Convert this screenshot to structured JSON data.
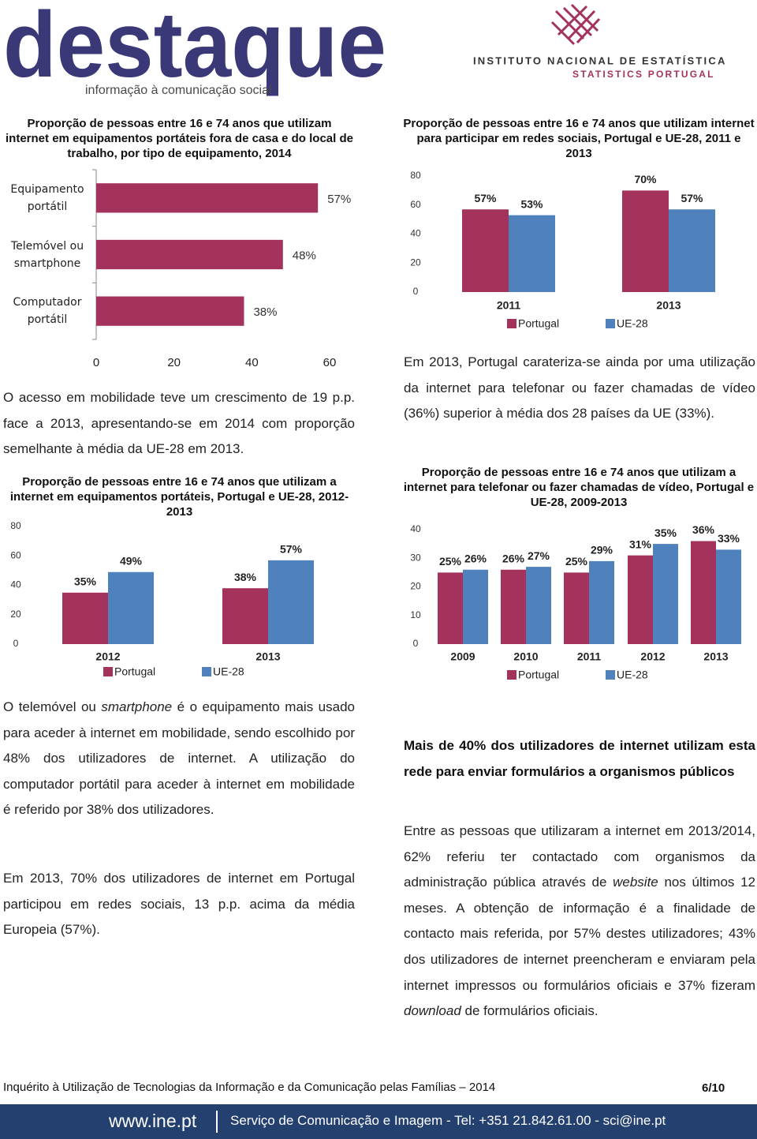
{
  "header": {
    "logo": "destaque",
    "tagline": "informação à comunicação social",
    "institute": "INSTITUTO NACIONAL DE ESTATÍSTICA",
    "institute_en": "STATISTICS PORTUGAL"
  },
  "chart_data": [
    {
      "type": "barh",
      "title": "Proporção de pessoas entre 16 e 74 anos que utilizam internet em equipamentos portáteis fora de casa e do local de trabalho, por tipo de equipamento, 2014",
      "categories": [
        "Equipamento portátil",
        "Telemóvel ou smartphone",
        "Computador portátil"
      ],
      "values": [
        57,
        48,
        38
      ],
      "value_labels": [
        "57%",
        "48%",
        "38%"
      ],
      "color": "#A3335C",
      "xlim": [
        0,
        60
      ],
      "xticks": [
        0,
        20,
        40,
        60
      ]
    },
    {
      "type": "bar",
      "title": "Proporção de pessoas entre 16 e 74 anos que utilizam internet para participar em redes sociais, Portugal e UE-28, 2011 e 2013",
      "categories": [
        "2011",
        "2013"
      ],
      "series": [
        {
          "name": "Portugal",
          "color": "#A3335C",
          "values": [
            57,
            70
          ],
          "value_labels": [
            "57%",
            "70%"
          ]
        },
        {
          "name": "UE-28",
          "color": "#4F81BD",
          "values": [
            53,
            57
          ],
          "value_labels": [
            "53%",
            "57%"
          ]
        }
      ],
      "ylim": [
        0,
        80
      ],
      "yticks": [
        0,
        20,
        40,
        60,
        80
      ]
    },
    {
      "type": "bar",
      "title": "Proporção de pessoas entre 16 e 74 anos que utilizam a internet em equipamentos portáteis, Portugal e UE-28, 2012-2013",
      "categories": [
        "2012",
        "2013"
      ],
      "series": [
        {
          "name": "Portugal",
          "color": "#A3335C",
          "values": [
            35,
            38
          ],
          "value_labels": [
            "35%",
            "38%"
          ]
        },
        {
          "name": "UE-28",
          "color": "#4F81BD",
          "values": [
            49,
            57
          ],
          "value_labels": [
            "49%",
            "57%"
          ]
        }
      ],
      "ylim": [
        0,
        80
      ],
      "yticks": [
        0,
        20,
        40,
        60,
        80
      ]
    },
    {
      "type": "bar",
      "title": "Proporção de pessoas entre 16 e 74 anos que utilizam a internet para telefonar ou fazer chamadas de vídeo, Portugal e UE-28, 2009-2013",
      "categories": [
        "2009",
        "2010",
        "2011",
        "2012",
        "2013"
      ],
      "series": [
        {
          "name": "Portugal",
          "color": "#A3335C",
          "values": [
            25,
            26,
            25,
            31,
            36
          ],
          "value_labels": [
            "25%",
            "26%",
            "25%",
            "31%",
            "36%"
          ]
        },
        {
          "name": "UE-28",
          "color": "#4F81BD",
          "values": [
            26,
            27,
            29,
            35,
            33
          ],
          "value_labels": [
            "26%",
            "27%",
            "29%",
            "35%",
            "33%"
          ]
        }
      ],
      "ylim": [
        0,
        40
      ],
      "yticks": [
        0,
        10,
        20,
        30,
        40
      ]
    }
  ],
  "paragraphs": [
    [
      "O acesso em mobilidade teve um crescimento de 19 p.p. face a 2013, apresentando-se em 2014 com proporção semelhante à média da UE-28 em 2013."
    ],
    [
      "O telemóvel ou ",
      "smartphone",
      " é o equipamento mais usado para aceder à internet em mobilidade, sendo escolhido por 48% dos utilizadores de internet. A utilização do computador portátil para aceder à internet em mobilidade é referido por 38% dos utilizadores."
    ],
    [
      "Em 2013, 70% dos utilizadores de internet em Portugal participou em redes sociais, 13 p.p. acima da média Europeia (57%)."
    ],
    [
      "Em 2013, Portugal carateriza-se ainda por uma utilização da internet para telefonar ou fazer chamadas de vídeo (36%) superior à média dos 28 países da UE (33%)."
    ],
    [
      "Entre as pessoas que utilizaram a internet em 2013/2014, 62% referiu ter contactado com organismos da administração pública através de ",
      "website",
      " nos últimos 12 meses. A obtenção de informação é a finalidade de contacto mais referida, por 57% destes utilizadores; 43% dos utilizadores de internet preencheram e enviaram pela internet impressos ou formulários oficiais e 37% fizeram ",
      "download",
      " de formulários oficiais."
    ]
  ],
  "heading": "Mais de 40% dos utilizadores de internet utilizam esta rede para enviar formulários a organismos públicos",
  "footer": {
    "survey": "Inquérito à Utilização de Tecnologias da Informação e da Comunicação pelas Famílias – 2014",
    "page": "6/10",
    "site": "www.ine.pt",
    "contact": "Serviço de Comunicação e Imagem - Tel: +351 21.842.61.00 - sci@ine.pt"
  }
}
